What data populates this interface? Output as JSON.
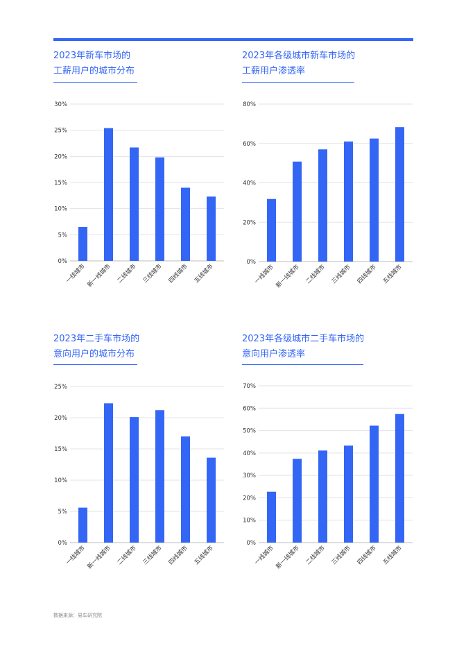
{
  "theme": {
    "accent": "#3466f6",
    "text": "#333333",
    "grid": "#e3e3e3",
    "axis": "#bdbdbd"
  },
  "charts": [
    {
      "title_line1": "2023年新车市场的",
      "title_line2": "工薪用户的城市分布",
      "chart_data": {
        "type": "bar",
        "categories": [
          "一线城市",
          "新一线城市",
          "二线城市",
          "三线城市",
          "四线城市",
          "五线城市"
        ],
        "values": [
          6.5,
          25.4,
          21.7,
          19.8,
          14.0,
          12.3
        ],
        "ylim": [
          0,
          30
        ],
        "yticks": [
          0,
          5,
          10,
          15,
          20,
          25,
          30
        ],
        "ytick_labels": [
          "0%",
          "5%",
          "10%",
          "15%",
          "20%",
          "25%",
          "30%"
        ],
        "grid": true
      }
    },
    {
      "title_line1": "2023年各级城市新车市场的",
      "title_line2": "工薪用户渗透率",
      "chart_data": {
        "type": "bar",
        "categories": [
          "一线城市",
          "新一线城市",
          "二线城市",
          "三线城市",
          "四线城市",
          "五线城市"
        ],
        "values": [
          31.8,
          50.8,
          57.0,
          61.0,
          62.5,
          68.3
        ],
        "ylim": [
          0,
          80
        ],
        "yticks": [
          0,
          20,
          40,
          60,
          80
        ],
        "ytick_labels": [
          "0%",
          "20%",
          "40%",
          "60%",
          "80%"
        ],
        "grid": true
      }
    },
    {
      "title_line1": "2023年二手车市场的",
      "title_line2": "意向用户的城市分布",
      "chart_data": {
        "type": "bar",
        "categories": [
          "一线城市",
          "新一线城市",
          "二线城市",
          "三线城市",
          "四线城市",
          "五线城市"
        ],
        "values": [
          5.6,
          22.3,
          20.1,
          21.2,
          17.0,
          13.6
        ],
        "ylim": [
          0,
          25
        ],
        "yticks": [
          0,
          5,
          10,
          15,
          20,
          25
        ],
        "ytick_labels": [
          "0%",
          "5%",
          "10%",
          "15%",
          "20%",
          "25%"
        ],
        "grid": true
      }
    },
    {
      "title_line1": "2023年各级城市二手车市场的",
      "title_line2": "意向用户渗透率",
      "chart_data": {
        "type": "bar",
        "categories": [
          "一线城市",
          "新一线城市",
          "二线城市",
          "三线城市",
          "四线城市",
          "五线城市"
        ],
        "values": [
          22.7,
          37.4,
          41.1,
          43.3,
          52.2,
          57.4
        ],
        "ylim": [
          0,
          70
        ],
        "yticks": [
          0,
          10,
          20,
          30,
          40,
          50,
          60,
          70
        ],
        "ytick_labels": [
          "0%",
          "10%",
          "20%",
          "30%",
          "40%",
          "50%",
          "60%",
          "70%"
        ],
        "grid": true
      }
    }
  ],
  "footer": {
    "source": "数据来源：易车研究院"
  }
}
